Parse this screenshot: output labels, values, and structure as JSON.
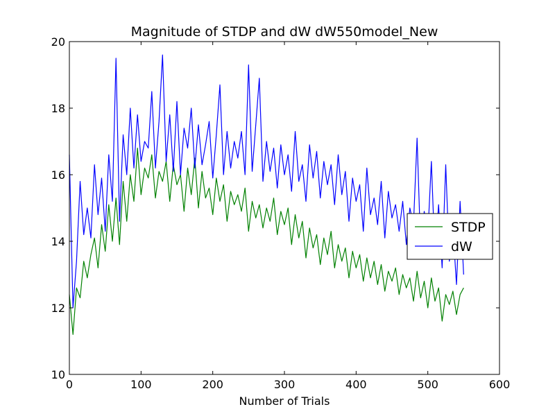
{
  "chart_data": {
    "type": "line",
    "title": "Magnitude of STDP and dW dW550model_New",
    "xlabel": "Number of Trials",
    "ylabel": "",
    "xlim": [
      0,
      600
    ],
    "ylim": [
      10,
      20
    ],
    "xticks": [
      0,
      100,
      200,
      300,
      400,
      500,
      600
    ],
    "yticks": [
      10,
      12,
      14,
      16,
      18,
      20
    ],
    "xtick_labels": [
      "0",
      "100",
      "200",
      "300",
      "400",
      "500",
      "600"
    ],
    "ytick_labels": [
      "10",
      "12",
      "14",
      "16",
      "18",
      "20"
    ],
    "grid": false,
    "legend_position": "center-right",
    "series": [
      {
        "name": "STDP",
        "color": "#008000",
        "x": [
          0,
          5,
          10,
          15,
          20,
          25,
          30,
          35,
          40,
          45,
          50,
          55,
          60,
          65,
          70,
          75,
          80,
          85,
          90,
          95,
          100,
          105,
          110,
          115,
          120,
          125,
          130,
          135,
          140,
          145,
          150,
          155,
          160,
          165,
          170,
          175,
          180,
          185,
          190,
          195,
          200,
          205,
          210,
          215,
          220,
          225,
          230,
          235,
          240,
          245,
          250,
          255,
          260,
          265,
          270,
          275,
          280,
          285,
          290,
          295,
          300,
          305,
          310,
          315,
          320,
          325,
          330,
          335,
          340,
          345,
          350,
          355,
          360,
          365,
          370,
          375,
          380,
          385,
          390,
          395,
          400,
          405,
          410,
          415,
          420,
          425,
          430,
          435,
          440,
          445,
          450,
          455,
          460,
          465,
          470,
          475,
          480,
          485,
          490,
          495,
          500,
          505,
          510,
          515,
          520,
          525,
          530,
          535,
          540,
          545,
          550
        ],
        "values": [
          12.4,
          11.2,
          12.6,
          12.3,
          13.4,
          12.9,
          13.6,
          14.1,
          13.2,
          14.5,
          13.7,
          15.1,
          14.0,
          15.3,
          13.9,
          15.8,
          14.6,
          16.0,
          15.2,
          16.8,
          15.4,
          16.2,
          15.9,
          16.6,
          15.3,
          16.1,
          15.8,
          16.4,
          15.2,
          16.3,
          15.7,
          16.0,
          14.9,
          16.2,
          15.4,
          16.5,
          15.0,
          16.1,
          15.3,
          15.6,
          14.8,
          15.9,
          15.2,
          15.7,
          14.6,
          15.5,
          15.1,
          15.4,
          14.9,
          15.6,
          14.3,
          15.2,
          14.7,
          15.1,
          14.4,
          15.0,
          14.6,
          15.3,
          14.2,
          14.9,
          14.5,
          15.0,
          13.9,
          14.8,
          14.1,
          14.6,
          13.5,
          14.4,
          13.8,
          14.2,
          13.3,
          14.1,
          13.6,
          14.3,
          13.2,
          13.9,
          13.4,
          13.8,
          12.9,
          13.7,
          13.2,
          13.6,
          12.8,
          13.5,
          12.9,
          13.4,
          12.7,
          13.3,
          12.5,
          13.1,
          12.8,
          13.2,
          12.4,
          13.0,
          12.6,
          12.9,
          12.2,
          13.1,
          12.3,
          12.8,
          12.0,
          12.9,
          12.2,
          12.6,
          11.6,
          12.4,
          12.1,
          12.5,
          11.8,
          12.4,
          12.6
        ]
      },
      {
        "name": "dW",
        "color": "#0000ff",
        "x": [
          0,
          5,
          10,
          15,
          20,
          25,
          30,
          35,
          40,
          45,
          50,
          55,
          60,
          65,
          70,
          75,
          80,
          85,
          90,
          95,
          100,
          105,
          110,
          115,
          120,
          125,
          130,
          135,
          140,
          145,
          150,
          155,
          160,
          165,
          170,
          175,
          180,
          185,
          190,
          195,
          200,
          205,
          210,
          215,
          220,
          225,
          230,
          235,
          240,
          245,
          250,
          255,
          260,
          265,
          270,
          275,
          280,
          285,
          290,
          295,
          300,
          305,
          310,
          315,
          320,
          325,
          330,
          335,
          340,
          345,
          350,
          355,
          360,
          365,
          370,
          375,
          380,
          385,
          390,
          395,
          400,
          405,
          410,
          415,
          420,
          425,
          430,
          435,
          440,
          445,
          450,
          455,
          460,
          465,
          470,
          475,
          480,
          485,
          490,
          495,
          500,
          505,
          510,
          515,
          520,
          525,
          530,
          535,
          540,
          545,
          550
        ],
        "values": [
          16.6,
          12.0,
          13.4,
          15.8,
          14.2,
          15.0,
          14.1,
          16.3,
          14.8,
          15.9,
          14.3,
          16.6,
          15.2,
          19.5,
          14.6,
          17.2,
          16.0,
          18.0,
          16.2,
          17.8,
          16.4,
          17.0,
          16.8,
          18.5,
          16.2,
          17.6,
          19.6,
          16.4,
          17.8,
          16.1,
          18.2,
          16.0,
          17.4,
          16.8,
          18.0,
          16.2,
          17.5,
          16.3,
          16.9,
          17.6,
          15.9,
          17.2,
          18.7,
          16.0,
          17.3,
          16.2,
          17.0,
          16.5,
          17.3,
          16.0,
          19.3,
          16.1,
          17.5,
          18.9,
          15.8,
          17.0,
          16.1,
          16.8,
          15.6,
          16.9,
          16.0,
          16.6,
          15.5,
          17.3,
          15.8,
          16.3,
          15.2,
          16.9,
          15.9,
          16.7,
          15.3,
          16.4,
          15.7,
          16.3,
          15.1,
          16.6,
          15.4,
          16.1,
          14.6,
          15.9,
          15.2,
          15.7,
          14.3,
          16.2,
          14.8,
          15.3,
          14.5,
          15.8,
          14.1,
          15.5,
          14.7,
          15.1,
          14.3,
          15.2,
          13.9,
          15.0,
          14.5,
          17.1,
          13.8,
          14.9,
          14.2,
          16.4,
          13.5,
          15.1,
          13.2,
          16.3,
          13.4,
          14.4,
          12.7,
          15.2,
          13.0
        ]
      }
    ]
  }
}
